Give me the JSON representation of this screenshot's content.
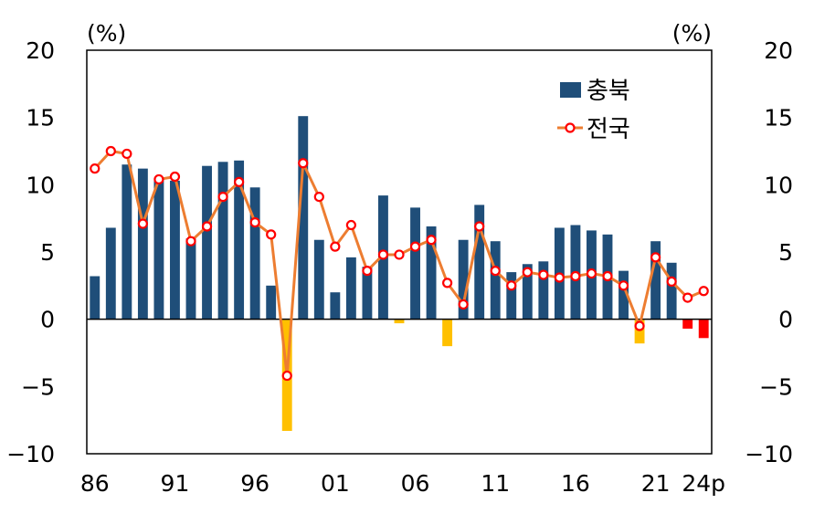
{
  "chart_data": {
    "type": "bar",
    "left_unit": "(%)",
    "right_unit": "(%)",
    "ylim": [
      -10,
      20
    ],
    "y_ticks": [
      "20",
      "15",
      "10",
      "5",
      "0",
      "−5",
      "−10"
    ],
    "x_tick_labels": [
      "86",
      "91",
      "96",
      "01",
      "06",
      "11",
      "16",
      "21",
      "24p"
    ],
    "years": [
      "1986",
      "1987",
      "1988",
      "1989",
      "1990",
      "1991",
      "1992",
      "1993",
      "1994",
      "1995",
      "1996",
      "1997",
      "1998",
      "1999",
      "2000",
      "2001",
      "2002",
      "2003",
      "2004",
      "2005",
      "2006",
      "2007",
      "2008",
      "2009",
      "2010",
      "2011",
      "2012",
      "2013",
      "2014",
      "2015",
      "2016",
      "2017",
      "2018",
      "2019",
      "2020",
      "2021",
      "2022",
      "2023",
      "2024p"
    ],
    "legend_position": "top-right",
    "grid": false,
    "series": [
      {
        "name": "충북",
        "kind": "bar",
        "color": "#1f4e79",
        "negative_color": "#ffc000",
        "highlight_negative_color": "#ff0000",
        "values": [
          3.2,
          6.8,
          11.5,
          11.2,
          10.5,
          10.3,
          6.0,
          11.4,
          11.7,
          11.8,
          9.8,
          2.5,
          -8.3,
          15.1,
          5.9,
          2.0,
          4.6,
          3.9,
          9.2,
          -0.3,
          8.3,
          6.9,
          -2.0,
          5.9,
          8.5,
          5.8,
          3.5,
          4.1,
          4.3,
          6.8,
          7.0,
          6.6,
          6.3,
          3.6,
          -1.8,
          5.8,
          4.2,
          -0.7,
          -1.4
        ]
      },
      {
        "name": "전국",
        "kind": "line",
        "color": "#ed7d31",
        "marker_color": "#ff0000",
        "values": [
          11.2,
          12.5,
          12.3,
          7.1,
          10.4,
          10.6,
          5.8,
          6.9,
          9.1,
          10.2,
          7.2,
          6.3,
          -4.2,
          11.6,
          9.1,
          5.4,
          7.0,
          3.6,
          4.8,
          4.8,
          5.4,
          5.9,
          2.7,
          1.1,
          6.9,
          3.6,
          2.5,
          3.5,
          3.3,
          3.1,
          3.2,
          3.4,
          3.2,
          2.5,
          -0.5,
          4.6,
          2.8,
          1.6,
          2.1
        ]
      }
    ]
  }
}
